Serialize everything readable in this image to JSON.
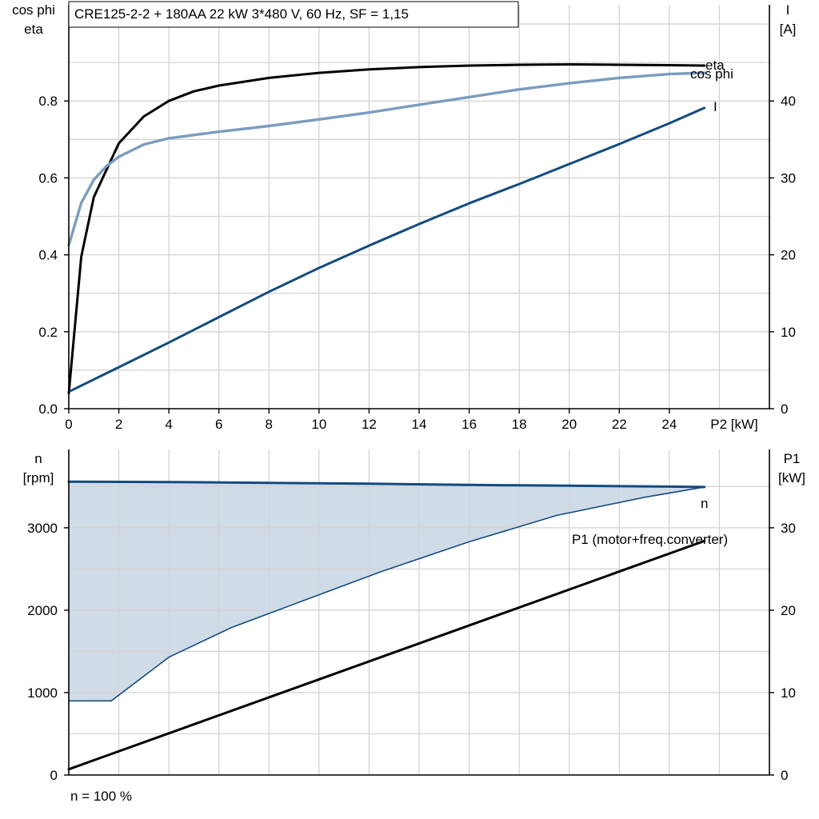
{
  "title": "CRE125-2-2 + 180AA   22 kW   3*480 V, 60 Hz, SF = 1,15",
  "footer_note": "n = 100 %",
  "colors": {
    "eta": "#000000",
    "cos_phi": "#7a9cbf",
    "current": "#134a80",
    "speed": "#134a80",
    "speed_range_fill": "#d0dbe8",
    "p1": "#000000",
    "grid": "#d3d3d3"
  },
  "chart_data": [
    {
      "type": "line",
      "x_axis": {
        "label": "P2 [kW]",
        "range": [
          0,
          28
        ],
        "ticks": [
          0,
          2,
          4,
          6,
          8,
          10,
          12,
          14,
          16,
          18,
          20,
          22,
          24
        ]
      },
      "y_axis_left": {
        "label_lines": [
          "cos phi",
          "eta"
        ],
        "range": [
          0,
          1.05
        ],
        "ticks": [
          0.0,
          0.2,
          0.4,
          0.6,
          0.8
        ],
        "tick_labels": [
          "0.0",
          "0.2",
          "0.4",
          "0.6",
          "0.8"
        ]
      },
      "y_axis_right": {
        "label_lines": [
          "I",
          "[A]"
        ],
        "range": [
          0,
          52.5
        ],
        "ticks": [
          0,
          10,
          20,
          30,
          40
        ],
        "tick_labels": [
          "0",
          "10",
          "20",
          "30",
          "40"
        ]
      },
      "grid": true,
      "series": [
        {
          "name": "eta",
          "axis": "left",
          "x": [
            0,
            0.5,
            1,
            2,
            3,
            4,
            5,
            6,
            8,
            10,
            12,
            14,
            16,
            18,
            20,
            22,
            24,
            25.4
          ],
          "y": [
            0.04,
            0.395,
            0.55,
            0.69,
            0.76,
            0.8,
            0.825,
            0.84,
            0.86,
            0.873,
            0.882,
            0.888,
            0.892,
            0.894,
            0.895,
            0.894,
            0.893,
            0.892
          ]
        },
        {
          "name": "cos phi",
          "axis": "left",
          "x": [
            0,
            0.5,
            1,
            1.5,
            2,
            3,
            4,
            6,
            8,
            10,
            12,
            14,
            16,
            18,
            20,
            22,
            24,
            25.4
          ],
          "y": [
            0.425,
            0.535,
            0.595,
            0.63,
            0.655,
            0.687,
            0.703,
            0.72,
            0.735,
            0.752,
            0.77,
            0.79,
            0.81,
            0.83,
            0.846,
            0.86,
            0.87,
            0.873
          ]
        },
        {
          "name": "I",
          "axis": "right",
          "x": [
            0,
            2,
            4,
            6,
            8,
            10,
            12,
            14,
            16,
            18,
            20,
            22,
            24,
            25.4
          ],
          "y": [
            2.2,
            5.4,
            8.6,
            11.9,
            15.2,
            18.3,
            21.2,
            24.0,
            26.7,
            29.2,
            31.8,
            34.4,
            37.1,
            39.1
          ]
        }
      ]
    },
    {
      "type": "area",
      "x_axis": {
        "label": "",
        "range": [
          0,
          28
        ],
        "ticks": [
          0,
          2,
          4,
          6,
          8,
          10,
          12,
          14,
          16,
          18,
          20,
          22,
          24
        ]
      },
      "y_axis_left": {
        "label_lines": [
          "n",
          "[rpm]"
        ],
        "range": [
          0,
          3950
        ],
        "ticks": [
          0,
          1000,
          2000,
          3000
        ],
        "tick_labels": [
          "0",
          "1000",
          "2000",
          "3000"
        ]
      },
      "y_axis_right": {
        "label_lines": [
          "P1",
          "[kW]"
        ],
        "range": [
          0,
          39.5
        ],
        "ticks": [
          0,
          10,
          20,
          30
        ],
        "tick_labels": [
          "0",
          "10",
          "20",
          "30"
        ]
      },
      "grid": true,
      "series": [
        {
          "name": "n",
          "axis": "left",
          "x": [
            0,
            4,
            8,
            12,
            16,
            20,
            24,
            25.4
          ],
          "y": [
            3560,
            3555,
            3545,
            3535,
            3520,
            3510,
            3500,
            3495
          ]
        },
        {
          "name": "n min",
          "axis": "left",
          "x": [
            0,
            1.7,
            4,
            6.5,
            9.5,
            12.5,
            16,
            19.5,
            23,
            25.4
          ],
          "y": [
            900,
            900,
            1430,
            1790,
            2130,
            2470,
            2830,
            3150,
            3370,
            3495
          ]
        },
        {
          "name": "P1 (motor+freq.converter)",
          "axis": "right",
          "x": [
            0,
            25.4
          ],
          "y": [
            0.7,
            28.4
          ]
        }
      ]
    }
  ]
}
